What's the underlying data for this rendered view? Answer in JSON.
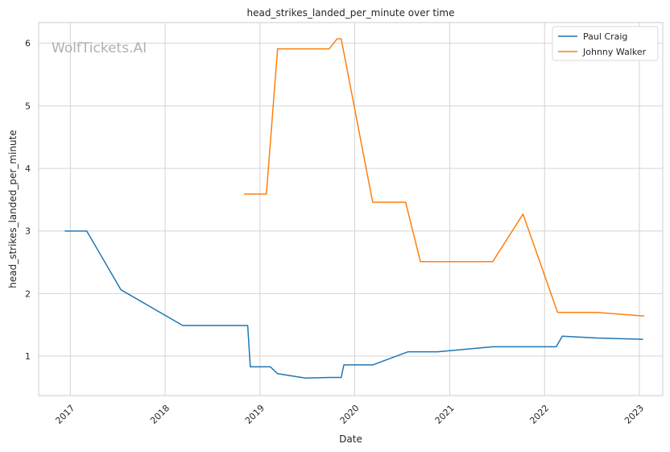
{
  "watermark": "WolfTickets.AI",
  "chart_data": {
    "type": "line",
    "title": "head_strikes_landed_per_minute over time",
    "xlabel": "Date",
    "ylabel": "head_strikes_landed_per_minute",
    "x_ticks": [
      "2017",
      "2018",
      "2019",
      "2020",
      "2021",
      "2022",
      "2023"
    ],
    "y_ticks": [
      "1",
      "2",
      "3",
      "4",
      "5",
      "6"
    ],
    "xlim": [
      "2016-09-01",
      "2023-04-01"
    ],
    "ylim": [
      0.37,
      6.33
    ],
    "grid": true,
    "legend_position": "top-right",
    "series": [
      {
        "name": "Paul Craig",
        "color": "#1f77b4",
        "points": [
          [
            "2016-12-10",
            3.0
          ],
          [
            "2017-03-05",
            3.0
          ],
          [
            "2017-07-15",
            2.06
          ],
          [
            "2018-03-10",
            1.49
          ],
          [
            "2018-11-15",
            1.49
          ],
          [
            "2018-11-25",
            0.83
          ],
          [
            "2019-02-10",
            0.83
          ],
          [
            "2019-03-10",
            0.72
          ],
          [
            "2019-06-25",
            0.65
          ],
          [
            "2019-09-30",
            0.66
          ],
          [
            "2019-11-10",
            0.66
          ],
          [
            "2019-11-20",
            0.86
          ],
          [
            "2020-03-10",
            0.86
          ],
          [
            "2020-07-25",
            1.07
          ],
          [
            "2020-11-15",
            1.07
          ],
          [
            "2021-06-15",
            1.15
          ],
          [
            "2022-02-15",
            1.15
          ],
          [
            "2022-03-10",
            1.32
          ],
          [
            "2022-07-20",
            1.29
          ],
          [
            "2023-01-15",
            1.27
          ]
        ]
      },
      {
        "name": "Johnny Walker",
        "color": "#ff7f0e",
        "points": [
          [
            "2018-11-01",
            3.59
          ],
          [
            "2019-01-26",
            3.59
          ],
          [
            "2019-03-10",
            5.91
          ],
          [
            "2019-09-25",
            5.91
          ],
          [
            "2019-10-25",
            6.07
          ],
          [
            "2019-11-10",
            6.07
          ],
          [
            "2020-03-10",
            3.46
          ],
          [
            "2020-07-15",
            3.46
          ],
          [
            "2020-09-10",
            2.51
          ],
          [
            "2021-06-15",
            2.51
          ],
          [
            "2021-10-10",
            3.27
          ],
          [
            "2022-02-20",
            1.7
          ],
          [
            "2022-07-20",
            1.7
          ],
          [
            "2023-01-20",
            1.64
          ]
        ]
      }
    ]
  }
}
